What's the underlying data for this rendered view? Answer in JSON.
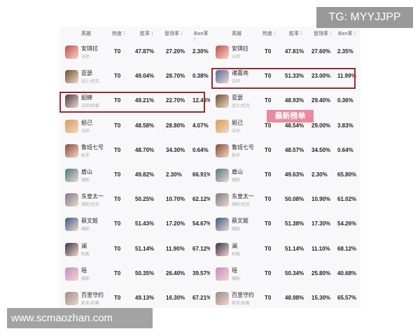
{
  "watermark_top": "TG: MYYJJPP",
  "watermark_bottom": "www.scmaozhan.com",
  "overlay_label": "最新榜单",
  "headers": [
    "英雄",
    "热度",
    "胜率",
    "登场率",
    "Ban率"
  ],
  "tables": [
    {
      "highlight_row": 2,
      "rows": [
        {
          "name": "安琪拉",
          "role": "法师",
          "tier": "T0",
          "win": "47.87%",
          "pick": "27.20%",
          "ban": "2.30%",
          "color": "#c94a4a"
        },
        {
          "name": "亚瑟",
          "role": "战士/坦克",
          "tier": "T0",
          "win": "49.04%",
          "pick": "28.70%",
          "ban": "0.38%",
          "color": "#6b5132"
        },
        {
          "name": "貂蝉",
          "role": "法师/刺客",
          "tier": "T0",
          "win": "49.21%",
          "pick": "22.70%",
          "ban": "12.46%",
          "color": "#4a3a48"
        },
        {
          "name": "妲己",
          "role": "法师",
          "tier": "T0",
          "win": "48.58%",
          "pick": "28.80%",
          "ban": "4.07%",
          "color": "#d99a55"
        },
        {
          "name": "鲁班七号",
          "role": "射手",
          "tier": "T0",
          "win": "48.70%",
          "pick": "34.30%",
          "ban": "0.64%",
          "color": "#8a4a36"
        },
        {
          "name": "盾山",
          "role": "辅助",
          "tier": "T0",
          "win": "49.82%",
          "pick": "2.30%",
          "ban": "66.91%",
          "color": "#4a7a88"
        },
        {
          "name": "东皇太一",
          "role": "辅助/坦克",
          "tier": "T0",
          "win": "50.25%",
          "pick": "10.70%",
          "ban": "62.12%",
          "color": "#7a7a8a"
        },
        {
          "name": "蔡文姬",
          "role": "辅助",
          "tier": "T0",
          "win": "51.43%",
          "pick": "17.20%",
          "ban": "54.67%",
          "color": "#3a5a8a"
        },
        {
          "name": "澜",
          "role": "刺客",
          "tier": "T0",
          "win": "51.14%",
          "pick": "11.90%",
          "ban": "67.12%",
          "color": "#3a3048"
        },
        {
          "name": "瑶",
          "role": "辅助",
          "tier": "T0",
          "win": "50.35%",
          "pick": "26.40%",
          "ban": "39.57%",
          "color": "#c98ac9"
        },
        {
          "name": "百里守约",
          "role": "射手/刺客",
          "tier": "T0",
          "win": "49.13%",
          "pick": "16.30%",
          "ban": "67.21%",
          "color": "#9a8a8a"
        }
      ]
    },
    {
      "highlight_row": 1,
      "rows": [
        {
          "name": "安琪拉",
          "role": "法师",
          "tier": "T0",
          "win": "47.81%",
          "pick": "27.60%",
          "ban": "2.35%",
          "color": "#c94a4a"
        },
        {
          "name": "诸葛亮",
          "role": "法师",
          "tier": "T0",
          "win": "51.33%",
          "pick": "23.00%",
          "ban": "11.99%",
          "color": "#4a6aa8"
        },
        {
          "name": "亚瑟",
          "role": "战士/坦克",
          "tier": "T0",
          "win": "48.93%",
          "pick": "29.40%",
          "ban": "0.36%",
          "color": "#6b5132"
        },
        {
          "name": "妲己",
          "role": "法师",
          "tier": "T0",
          "win": "48.54%",
          "pick": "29.00%",
          "ban": "3.83%",
          "color": "#d99a55"
        },
        {
          "name": "鲁班七号",
          "role": "射手",
          "tier": "T0",
          "win": "48.57%",
          "pick": "34.50%",
          "ban": "0.64%",
          "color": "#8a4a36"
        },
        {
          "name": "盾山",
          "role": "辅助",
          "tier": "T0",
          "win": "49.63%",
          "pick": "2.30%",
          "ban": "65.80%",
          "color": "#4a7a88"
        },
        {
          "name": "东皇太一",
          "role": "辅助/坦克",
          "tier": "T0",
          "win": "50.08%",
          "pick": "10.90%",
          "ban": "61.02%",
          "color": "#7a7a8a"
        },
        {
          "name": "蔡文姬",
          "role": "辅助",
          "tier": "T0",
          "win": "51.38%",
          "pick": "17.30%",
          "ban": "54.26%",
          "color": "#3a5a8a"
        },
        {
          "name": "澜",
          "role": "刺客",
          "tier": "T0",
          "win": "51.14%",
          "pick": "11.10%",
          "ban": "68.12%",
          "color": "#3a3048"
        },
        {
          "name": "瑶",
          "role": "辅助",
          "tier": "T0",
          "win": "50.34%",
          "pick": "25.80%",
          "ban": "40.68%",
          "color": "#c98ac9"
        },
        {
          "name": "百里守约",
          "role": "射手/刺客",
          "tier": "T0",
          "win": "48.98%",
          "pick": "15.30%",
          "ban": "65.57%",
          "color": "#9a8a8a"
        }
      ]
    }
  ]
}
